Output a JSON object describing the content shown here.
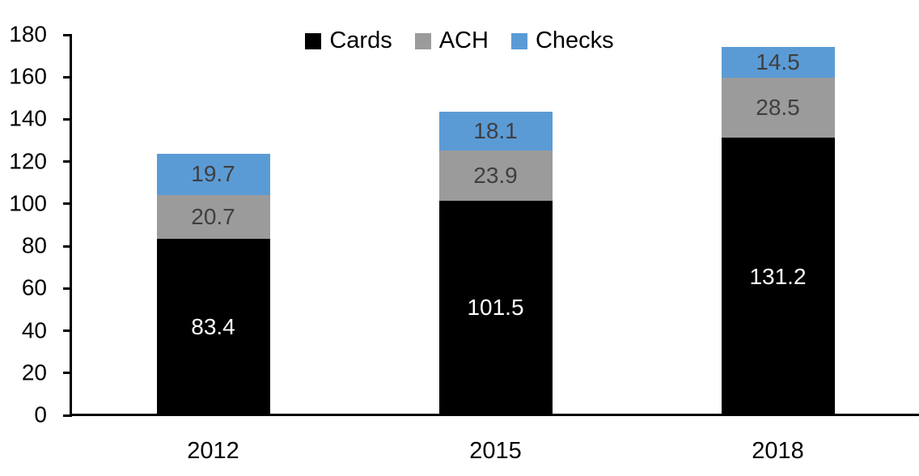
{
  "chart_data": {
    "type": "bar",
    "stacked": true,
    "categories": [
      "2012",
      "2015",
      "2018"
    ],
    "series": [
      {
        "name": "Cards",
        "color": "#000000",
        "label_color": "#ffffff",
        "values": [
          83.4,
          101.5,
          131.2
        ]
      },
      {
        "name": "ACH",
        "color": "#9b9b9b",
        "label_color": "#3f3f3f",
        "values": [
          20.7,
          23.9,
          28.5
        ]
      },
      {
        "name": "Checks",
        "color": "#5b9bd5",
        "label_color": "#3f3f3f",
        "values": [
          19.7,
          18.1,
          14.5
        ]
      }
    ],
    "title": "",
    "xlabel": "",
    "ylabel": "",
    "ylim": [
      0,
      180
    ],
    "ytick_step": 20,
    "yticks": [
      0,
      20,
      40,
      60,
      80,
      100,
      120,
      140,
      160,
      180
    ],
    "grid": false,
    "legend_position": "top-center",
    "value_label_decimals": 1
  },
  "colors": {
    "background": "#ffffff",
    "axis": "#000000",
    "cards": "#000000",
    "ach": "#9b9b9b",
    "checks": "#5b9bd5",
    "label_on_dark": "#ffffff",
    "label_on_light": "#3f3f3f"
  }
}
